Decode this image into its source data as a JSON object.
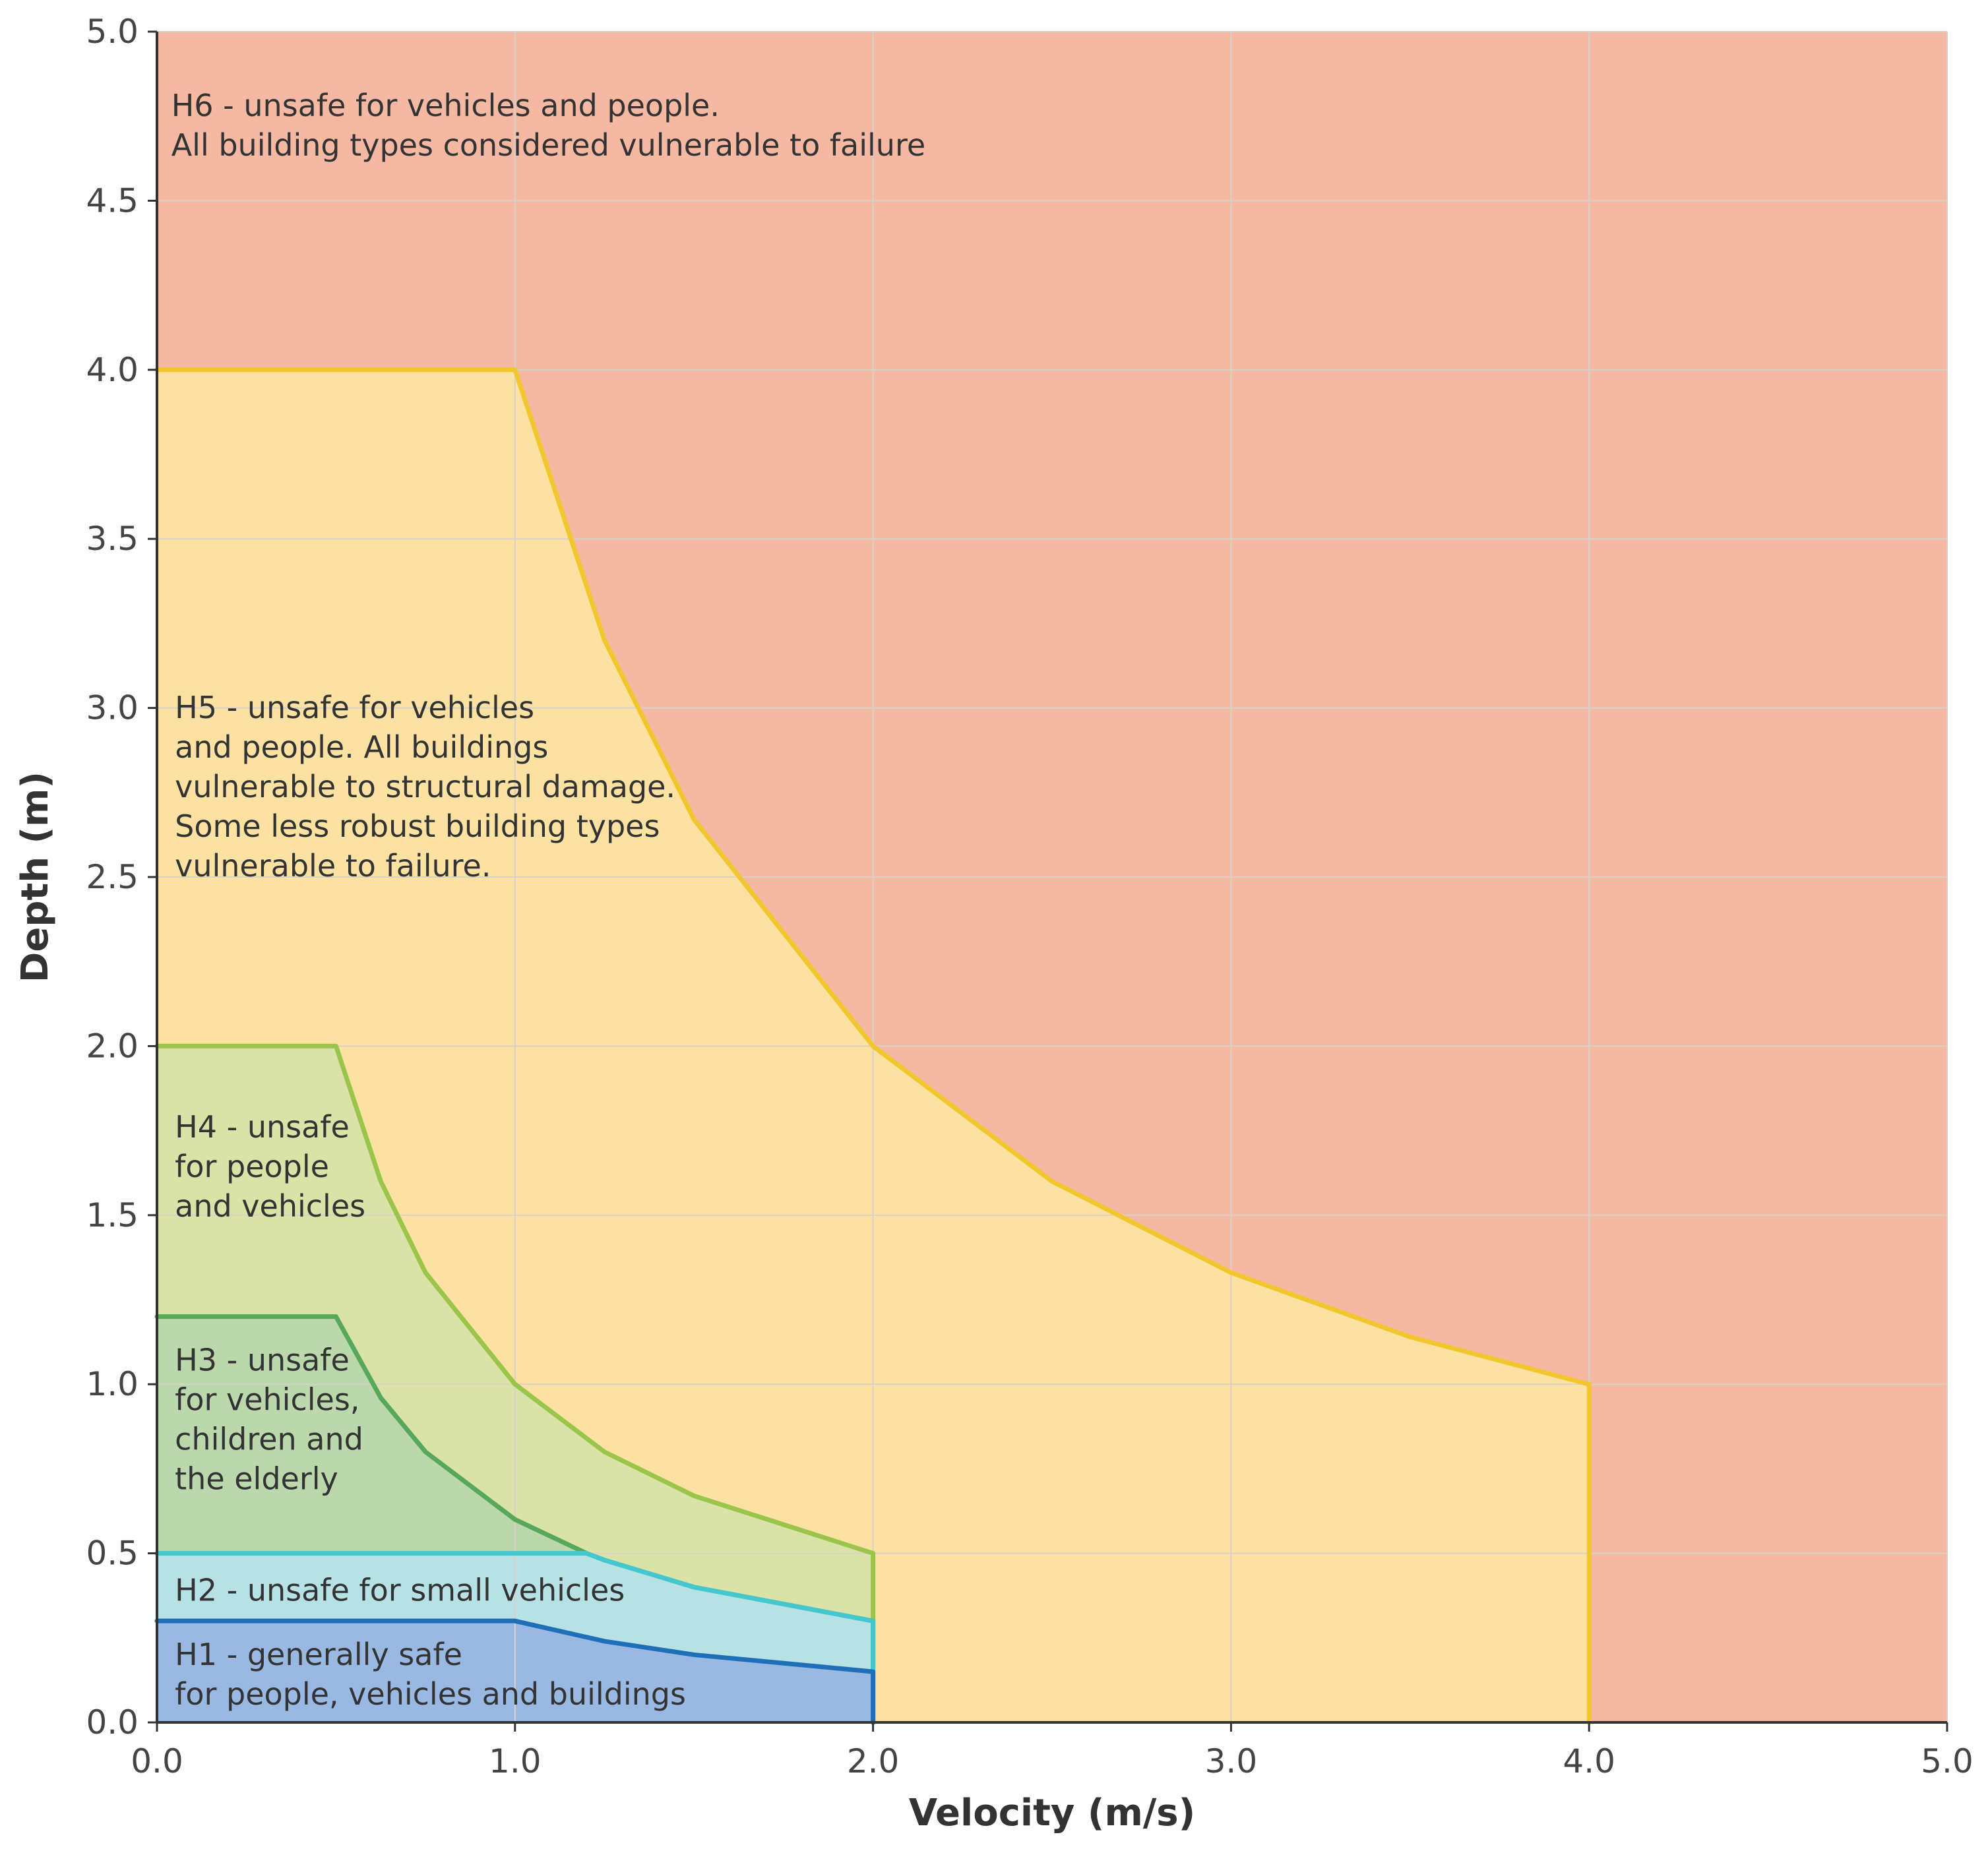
{
  "chart_data": {
    "type": "area",
    "xlabel": "Velocity (m/s)",
    "ylabel": "Depth (m)",
    "xlim": [
      0,
      5
    ],
    "ylim": [
      0,
      5
    ],
    "x_ticks": [
      "0.0",
      "1.0",
      "2.0",
      "3.0",
      "4.0",
      "5.0"
    ],
    "y_ticks": [
      "0.0",
      "0.5",
      "1.0",
      "1.5",
      "2.0",
      "2.5",
      "3.0",
      "3.5",
      "4.0",
      "4.5",
      "5.0"
    ],
    "grid": true,
    "zones": [
      {
        "id": "H6",
        "label_lines": [
          "H6 - unsafe for vehicles and people.",
          "All building types considered vulnerable to failure"
        ],
        "fill": "#f5b9a3",
        "stroke": "#f5b9a3",
        "boundary": []
      },
      {
        "id": "H5",
        "label_lines": [
          "H5 - unsafe for vehicles",
          "and people. All buildings",
          "vulnerable to structural damage.",
          "Some less robust building types",
          "vulnerable to failure."
        ],
        "fill": "#fce2a2",
        "stroke": "#f2c72e",
        "boundary": [
          [
            0,
            4
          ],
          [
            1,
            4
          ],
          [
            1.25,
            3.2
          ],
          [
            1.5,
            2.67
          ],
          [
            2,
            2
          ],
          [
            2.5,
            1.6
          ],
          [
            3,
            1.33
          ],
          [
            3.5,
            1.14
          ],
          [
            4,
            1
          ],
          [
            4,
            0
          ]
        ]
      },
      {
        "id": "H4",
        "label_lines": [
          "H4 - unsafe",
          "for people",
          "and vehicles"
        ],
        "fill": "#d9e3a8",
        "stroke": "#9bc54a",
        "boundary": [
          [
            0,
            2
          ],
          [
            0.5,
            2
          ],
          [
            0.625,
            1.6
          ],
          [
            0.75,
            1.33
          ],
          [
            1,
            1
          ],
          [
            1.25,
            0.8
          ],
          [
            1.5,
            0.67
          ],
          [
            2,
            0.5
          ],
          [
            2,
            0
          ]
        ]
      },
      {
        "id": "H3",
        "label_lines": [
          "H3 - unsafe",
          "for vehicles,",
          "children and",
          "the elderly"
        ],
        "fill": "#bbd7ac",
        "stroke": "#58a85c",
        "boundary": [
          [
            0,
            1.2
          ],
          [
            0.5,
            1.2
          ],
          [
            0.625,
            0.96
          ],
          [
            0.75,
            0.8
          ],
          [
            1,
            0.6
          ],
          [
            1.2,
            0.5
          ],
          [
            1.25,
            0.48
          ],
          [
            1.5,
            0.4
          ],
          [
            2,
            0.3
          ],
          [
            2,
            0
          ]
        ]
      },
      {
        "id": "H2",
        "label_lines": [
          "H2 - unsafe for small vehicles"
        ],
        "fill": "#b6e2e6",
        "stroke": "#45c7cf",
        "boundary": [
          [
            0,
            0.5
          ],
          [
            1.2,
            0.5
          ],
          [
            1.25,
            0.48
          ],
          [
            1.5,
            0.4
          ],
          [
            2,
            0.3
          ],
          [
            2,
            0
          ]
        ]
      },
      {
        "id": "H1",
        "label_lines": [
          "H1 - generally safe",
          "for people, vehicles and buildings"
        ],
        "fill": "#99b9e3",
        "stroke": "#1f6fb8",
        "boundary": [
          [
            0,
            0.3
          ],
          [
            1,
            0.3
          ],
          [
            1.25,
            0.24
          ],
          [
            1.5,
            0.2
          ],
          [
            2,
            0.15
          ],
          [
            2,
            0
          ]
        ]
      }
    ]
  }
}
